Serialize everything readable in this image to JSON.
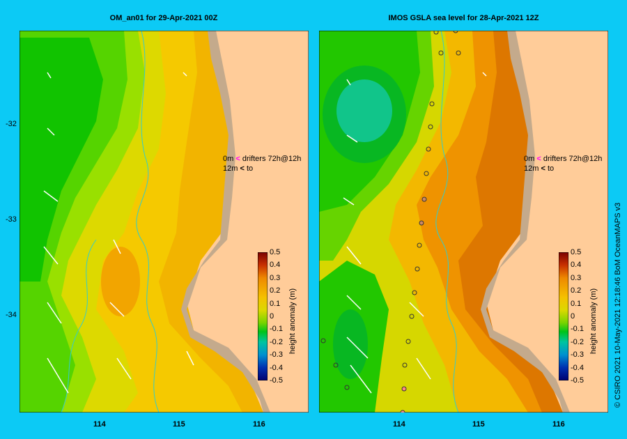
{
  "panels": [
    {
      "title": "OM_an01  for 29-Apr-2021 00Z"
    },
    {
      "title": "IMOS GSLA sea level  for 28-Apr-2021 12Z"
    }
  ],
  "y_ticks": [
    "-32",
    "-33",
    "-34"
  ],
  "x_ticks": [
    "114",
    "115",
    "116"
  ],
  "drifter_legend": {
    "row1_depth": "0m",
    "row1_label": "drifters 72h@12h",
    "row2_depth": "12m",
    "row2_label": "to"
  },
  "colorbar": {
    "label": "height anomaly (m)",
    "ticks": [
      "0.5",
      "0.4",
      "0.3",
      "0.2",
      "0.1",
      "0",
      "-0.1",
      "-0.2",
      "-0.3",
      "-0.4",
      "-0.5"
    ]
  },
  "credit": "© CSIRO 2021   10-May-2021 12:18:46 BoM OceanMAPS v3",
  "colors": {
    "background": "#0ccaf5",
    "land": "#ffcc99",
    "shelf": "#c4aa8c",
    "contour": "#33cccc"
  }
}
